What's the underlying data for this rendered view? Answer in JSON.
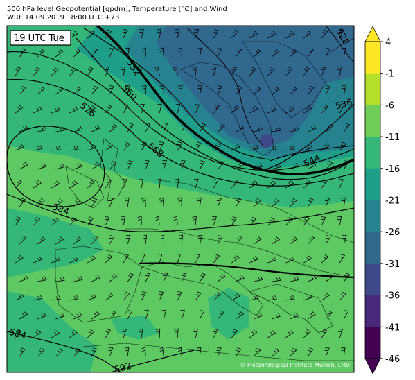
{
  "header": {
    "line1": "500 hPa level Geopotential [gpdm], Temperature [°C] and Wind",
    "line2": "WRF 14.09.2019 18:00 UTC +73"
  },
  "time_box": "19 UTC Tue",
  "copyright": "© Meteorological Institute Munich, LMU",
  "contour_labels": [
    "552",
    "560",
    "576",
    "568",
    "544",
    "536",
    "528",
    "584",
    "584",
    "592"
  ],
  "colorbar": {
    "ticks": [
      "4",
      "-1",
      "-6",
      "-11",
      "-16",
      "-21",
      "-26",
      "-31",
      "-36",
      "-41",
      "-46"
    ],
    "colors": [
      "#fde725",
      "#b5de2b",
      "#6ece58",
      "#35b779",
      "#1f9e89",
      "#26828e",
      "#31688e",
      "#3e4989",
      "#482878",
      "#440154"
    ],
    "extend_top_color": "#fde725",
    "extend_bottom_color": "#440154"
  }
}
